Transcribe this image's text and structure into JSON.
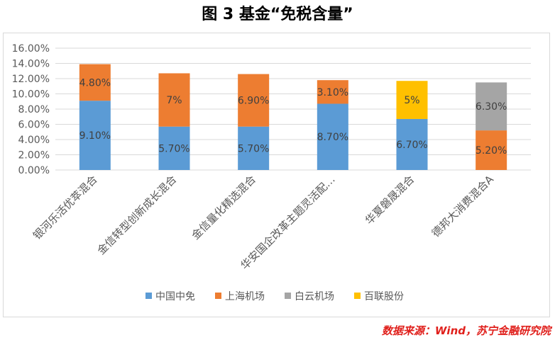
{
  "chart_data": {
    "type": "bar",
    "stacked": true,
    "title": "图 3 基金“免税含量”",
    "categories": [
      "银河乐活优萃混合",
      "金信转型创新成长混合",
      "金信量化精选混合",
      "华安国企改革主题灵活配…",
      "华夏磐晟混合",
      "德邦大消费混合A"
    ],
    "series": [
      {
        "name": "中国中免",
        "color": "#5b9bd5",
        "values": [
          9.1,
          5.7,
          5.7,
          8.7,
          6.7,
          0
        ],
        "labels": [
          "9.10%",
          "5.70%",
          "5.70%",
          "8.70%",
          "6.70%",
          ""
        ]
      },
      {
        "name": "上海机场",
        "color": "#ed7d31",
        "values": [
          4.8,
          7.0,
          6.9,
          3.1,
          0,
          5.2
        ],
        "labels": [
          "4.80%",
          "7%",
          "6.90%",
          "3.10%",
          "",
          "5.20%"
        ]
      },
      {
        "name": "白云机场",
        "color": "#a5a5a5",
        "values": [
          0,
          0,
          0,
          0,
          0,
          6.3
        ],
        "labels": [
          "",
          "",
          "",
          "",
          "",
          "6.30%"
        ]
      },
      {
        "name": "百联股份",
        "color": "#ffc000",
        "values": [
          0,
          0,
          0,
          0,
          5.0,
          0
        ],
        "labels": [
          "",
          "",
          "",
          "",
          "5%",
          ""
        ]
      }
    ],
    "ylim": [
      0,
      16
    ],
    "yticks": [
      "0.00%",
      "2.00%",
      "4.00%",
      "6.00%",
      "8.00%",
      "10.00%",
      "12.00%",
      "14.00%",
      "16.00%"
    ],
    "grid": true,
    "legend_position": "bottom"
  },
  "source": "数据来源：Wind，苏宁金融研究院"
}
